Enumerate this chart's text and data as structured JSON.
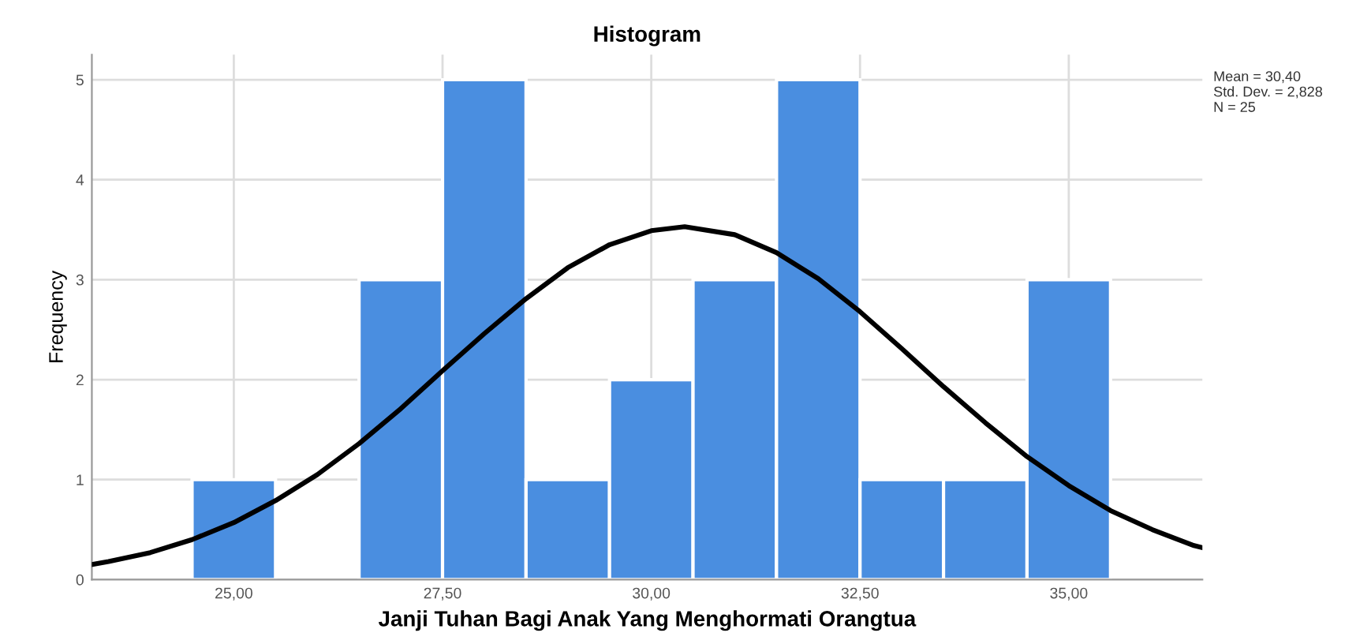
{
  "chart_data": {
    "type": "histogram",
    "title": "Histogram",
    "xlabel": "Janji Tuhan Bagi Anak Yang Menghormati Orangtua",
    "ylabel": "Frequency",
    "bins": [
      24.5,
      25.5,
      26.5,
      27.5,
      28.5,
      29.5,
      30.5,
      31.5,
      32.5,
      33.5,
      34.5,
      35.5
    ],
    "values": [
      1,
      0,
      3,
      5,
      1,
      2,
      3,
      5,
      1,
      1,
      3
    ],
    "color": "#4a8ee0",
    "series": [
      {
        "type": "line",
        "color": "#000000",
        "x": [
          23.3,
          23.5,
          24,
          24.5,
          25,
          25.5,
          26,
          26.5,
          27,
          27.5,
          28,
          28.5,
          29,
          29.5,
          30,
          30.4,
          31,
          31.5,
          32,
          32.5,
          33,
          33.5,
          34,
          34.5,
          35,
          35.5,
          36,
          36.5,
          36.6
        ],
        "values": [
          0.15,
          0.18,
          0.27,
          0.4,
          0.57,
          0.79,
          1.05,
          1.36,
          1.71,
          2.09,
          2.46,
          2.81,
          3.12,
          3.35,
          3.49,
          3.53,
          3.45,
          3.27,
          3.01,
          2.68,
          2.31,
          1.93,
          1.57,
          1.23,
          0.94,
          0.69,
          0.5,
          0.34,
          0.32
        ]
      }
    ],
    "xlim": [
      23.3,
      36.6
    ],
    "ylim": [
      0,
      5.25
    ],
    "xticks": [
      {
        "value": 25,
        "label": "25,00"
      },
      {
        "value": 27.5,
        "label": "27,50"
      },
      {
        "value": 30,
        "label": "30,00"
      },
      {
        "value": 32.5,
        "label": "32,50"
      },
      {
        "value": 35,
        "label": "35,00"
      }
    ],
    "yticks": [
      0,
      1,
      2,
      3,
      4,
      5
    ],
    "grid": true,
    "marker": "none",
    "line_style": "solid",
    "annotations": [
      "Mean = 30,40\nStd. Dev. = 2,828\nN = 25"
    ]
  }
}
